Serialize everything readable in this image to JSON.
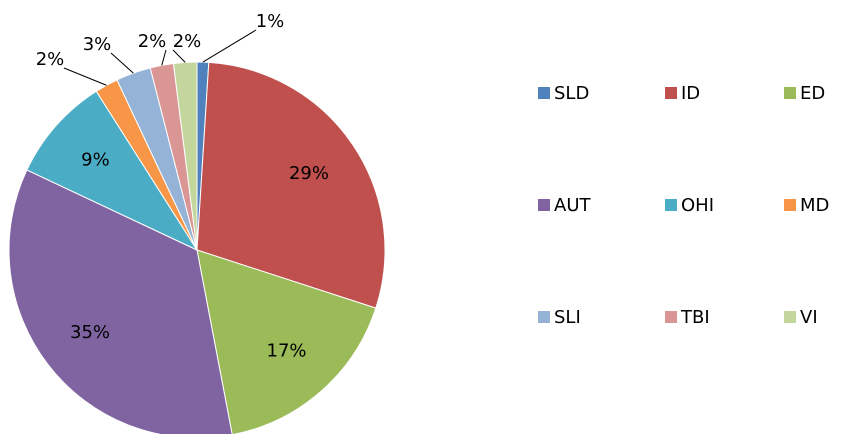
{
  "chart_data": {
    "type": "pie",
    "categories": [
      "SLD",
      "ID",
      "ED",
      "AUT",
      "OHI",
      "MD",
      "SLI",
      "TBI",
      "VI"
    ],
    "values": [
      1,
      29,
      17,
      35,
      9,
      2,
      3,
      2,
      2
    ],
    "value_labels": [
      "1%",
      "29%",
      "17%",
      "35%",
      "9%",
      "2%",
      "3%",
      "2%",
      "2%"
    ],
    "colors": [
      "#4f81bd",
      "#c0504d",
      "#9bbb59",
      "#8064a2",
      "#4bacc6",
      "#f79646",
      "#95b3d7",
      "#d99694",
      "#c3d69b"
    ],
    "legend": "right"
  }
}
